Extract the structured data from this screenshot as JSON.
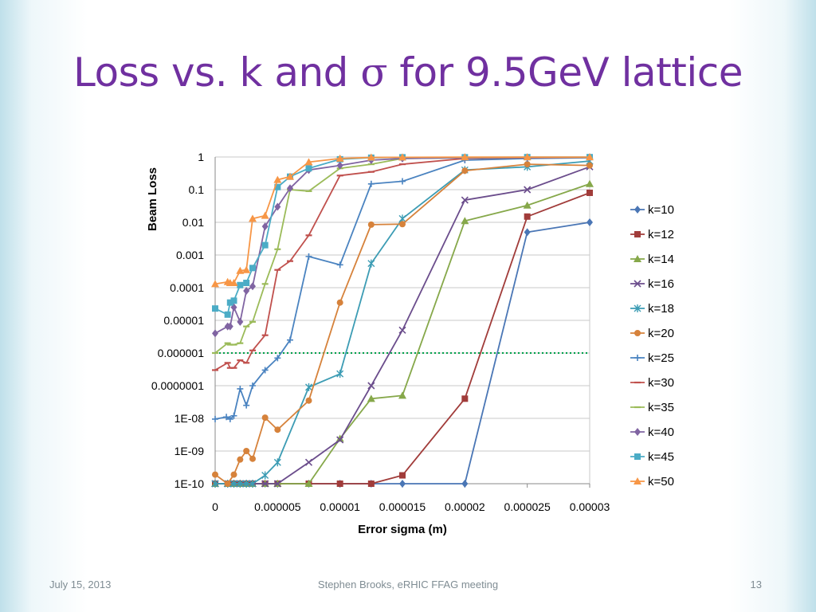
{
  "title": {
    "prefix": "Loss vs. k and ",
    "symbol": "σ",
    "suffix": " for 9.5GeV lattice"
  },
  "footer": {
    "date": "July 15, 2013",
    "center": "Stephen Brooks, eRHIC FFAG meeting",
    "page": "13"
  },
  "chart_data": {
    "type": "line",
    "title": "",
    "xlabel": "Error sigma (m)",
    "ylabel": "Beam Loss",
    "xlim": [
      0,
      3e-05
    ],
    "ylim": [
      1e-10,
      1
    ],
    "yscale": "log",
    "grid": "horizontal",
    "legend_position": "right",
    "x_tick_labels": [
      "0",
      "0.000005",
      "0.00001",
      "0.000015",
      "0.00002",
      "0.000025",
      "0.00003"
    ],
    "x_tick_values": [
      0,
      5e-06,
      1e-05,
      1.5e-05,
      2e-05,
      2.5e-05,
      3e-05
    ],
    "y_tick_labels": [
      "1",
      "0.1",
      "0.01",
      "0.001",
      "0.0001",
      "0.00001",
      "0.000001",
      "0.0000001",
      "1E-08",
      "1E-09",
      "1E-10"
    ],
    "y_tick_values": [
      1,
      0.1,
      0.01,
      0.001,
      0.0001,
      1e-05,
      1e-06,
      1e-07,
      1e-08,
      1e-09,
      1e-10
    ],
    "reference_line": {
      "y": 1e-06,
      "color": "#00a04a",
      "style": "dotted"
    },
    "series": [
      {
        "name": "k=10",
        "color": "#4a76b5",
        "marker": "diamond",
        "x": [
          0,
          1e-06,
          1.5e-06,
          2e-06,
          2.5e-06,
          3e-06,
          4e-06,
          5e-06,
          7.5e-06,
          1e-05,
          1.25e-05,
          1.5e-05,
          2e-05,
          2.5e-05,
          3e-05
        ],
        "y": [
          1e-10,
          1e-10,
          1e-10,
          1e-10,
          1e-10,
          1e-10,
          1e-10,
          1e-10,
          1e-10,
          1e-10,
          1e-10,
          1e-10,
          1e-10,
          0.005,
          0.01
        ]
      },
      {
        "name": "k=12",
        "color": "#a13c3a",
        "marker": "square",
        "x": [
          0,
          1e-06,
          1.5e-06,
          2e-06,
          2.5e-06,
          3e-06,
          4e-06,
          5e-06,
          7.5e-06,
          1e-05,
          1.25e-05,
          1.5e-05,
          2e-05,
          2.5e-05,
          3e-05
        ],
        "y": [
          1e-10,
          1e-10,
          1e-10,
          1e-10,
          1e-10,
          1e-10,
          1e-10,
          1e-10,
          1e-10,
          1e-10,
          1e-10,
          1.8e-10,
          4e-08,
          0.015,
          0.08
        ]
      },
      {
        "name": "k=14",
        "color": "#86a84a",
        "marker": "triangle",
        "x": [
          0,
          1e-06,
          1.5e-06,
          2e-06,
          2.5e-06,
          3e-06,
          4e-06,
          5e-06,
          7.5e-06,
          1e-05,
          1.25e-05,
          1.5e-05,
          2e-05,
          2.5e-05,
          3e-05
        ],
        "y": [
          1e-10,
          1e-10,
          1e-10,
          1e-10,
          1e-10,
          1e-10,
          1e-10,
          1e-10,
          1e-10,
          2.4e-09,
          4e-08,
          5e-08,
          0.011,
          0.033,
          0.15
        ]
      },
      {
        "name": "k=16",
        "color": "#6b4d8c",
        "marker": "x",
        "x": [
          0,
          1e-06,
          1.5e-06,
          2e-06,
          2.5e-06,
          3e-06,
          4e-06,
          5e-06,
          7.5e-06,
          1e-05,
          1.25e-05,
          1.5e-05,
          2e-05,
          2.5e-05,
          3e-05
        ],
        "y": [
          1e-10,
          1e-10,
          1e-10,
          1e-10,
          1e-10,
          1e-10,
          1e-10,
          1e-10,
          4.5e-10,
          2.2e-09,
          1e-07,
          5e-06,
          0.048,
          0.1,
          0.5
        ]
      },
      {
        "name": "k=18",
        "color": "#3c9cb4",
        "marker": "star",
        "x": [
          0,
          1e-06,
          1.5e-06,
          2e-06,
          2.5e-06,
          3e-06,
          4e-06,
          5e-06,
          7.5e-06,
          1e-05,
          1.25e-05,
          1.5e-05,
          2e-05,
          2.5e-05,
          3e-05
        ],
        "y": [
          1e-10,
          1e-10,
          1e-10,
          1e-10,
          1e-10,
          1e-10,
          1.8e-10,
          4.5e-10,
          9e-08,
          2.3e-07,
          0.00055,
          0.013,
          0.4,
          0.5,
          0.75
        ]
      },
      {
        "name": "k=20",
        "color": "#d6823b",
        "marker": "circle",
        "x": [
          0,
          1e-06,
          1.5e-06,
          2e-06,
          2.5e-06,
          3e-06,
          4e-06,
          5e-06,
          7.5e-06,
          1e-05,
          1.25e-05,
          1.5e-05,
          2e-05,
          2.5e-05,
          3e-05
        ],
        "y": [
          1.9e-10,
          1e-10,
          1.9e-10,
          5.5e-10,
          1e-09,
          5.8e-10,
          1.05e-08,
          4.5e-09,
          3.5e-08,
          3.5e-05,
          0.0085,
          0.0088,
          0.38,
          0.6,
          0.55
        ]
      },
      {
        "name": "k=25",
        "color": "#4a83c0",
        "marker": "plus",
        "x": [
          0,
          9e-07,
          1.2e-06,
          1.5e-06,
          2e-06,
          2.5e-06,
          3e-06,
          4e-06,
          5e-06,
          6e-06,
          7.5e-06,
          1e-05,
          1.25e-05,
          1.5e-05,
          2e-05,
          2.5e-05,
          3e-05
        ],
        "y": [
          9.5e-09,
          1.1e-08,
          9.5e-09,
          1.2e-08,
          8e-08,
          2.5e-08,
          1e-07,
          3e-07,
          7e-07,
          2.5e-06,
          0.0009,
          0.0005,
          0.15,
          0.18,
          0.8,
          0.9,
          0.95
        ]
      },
      {
        "name": "k=30",
        "color": "#c0504d",
        "marker": "dash",
        "x": [
          0,
          1e-06,
          1.2e-06,
          1.5e-06,
          2e-06,
          2.5e-06,
          3e-06,
          4e-06,
          5e-06,
          6e-06,
          7.5e-06,
          1e-05,
          1.25e-05,
          1.5e-05,
          2e-05,
          2.5e-05,
          3e-05
        ],
        "y": [
          3e-07,
          5e-07,
          3.5e-07,
          3.5e-07,
          6e-07,
          5e-07,
          1.2e-06,
          3.5e-06,
          0.00035,
          0.00065,
          0.004,
          0.27,
          0.35,
          0.6,
          0.9,
          0.95,
          0.97
        ]
      },
      {
        "name": "k=35",
        "color": "#9bbb59",
        "marker": "dash",
        "x": [
          0,
          1e-06,
          1.2e-06,
          1.5e-06,
          2e-06,
          2.5e-06,
          3e-06,
          4e-06,
          5e-06,
          6e-06,
          7.5e-06,
          1e-05,
          1.25e-05,
          1.5e-05,
          2e-05,
          2.5e-05,
          3e-05
        ],
        "y": [
          1e-06,
          2e-06,
          1.8e-06,
          1.8e-06,
          2e-06,
          6.5e-06,
          9e-06,
          0.00013,
          0.0015,
          0.1,
          0.09,
          0.45,
          0.6,
          0.9,
          0.95,
          0.97,
          0.98
        ]
      },
      {
        "name": "k=40",
        "color": "#8064a2",
        "marker": "diamond",
        "x": [
          0,
          1e-06,
          1.2e-06,
          1.5e-06,
          2e-06,
          2.5e-06,
          3e-06,
          4e-06,
          5e-06,
          6e-06,
          7.5e-06,
          1e-05,
          1.25e-05,
          1.5e-05,
          2e-05,
          2.5e-05,
          3e-05
        ],
        "y": [
          4e-06,
          6.5e-06,
          6.5e-06,
          2.5e-05,
          9e-06,
          8e-05,
          0.00011,
          0.0075,
          0.03,
          0.11,
          0.4,
          0.55,
          0.8,
          0.9,
          0.95,
          0.97,
          0.98
        ]
      },
      {
        "name": "k=45",
        "color": "#4bacc6",
        "marker": "square",
        "x": [
          0,
          1e-06,
          1.2e-06,
          1.5e-06,
          2e-06,
          2.5e-06,
          3e-06,
          4e-06,
          5e-06,
          6e-06,
          7.5e-06,
          1e-05,
          1.25e-05,
          1.5e-05,
          2e-05,
          2.5e-05,
          3e-05
        ],
        "y": [
          2.3e-05,
          1.5e-05,
          3.5e-05,
          4e-05,
          0.00012,
          0.00014,
          0.0004,
          0.002,
          0.12,
          0.25,
          0.45,
          0.85,
          0.95,
          0.98,
          0.98,
          0.99,
          0.99
        ]
      },
      {
        "name": "k=50",
        "color": "#f79646",
        "marker": "triangle",
        "x": [
          0,
          1e-06,
          1.2e-06,
          1.5e-06,
          2e-06,
          2.5e-06,
          3e-06,
          4e-06,
          5e-06,
          6e-06,
          7.5e-06,
          1e-05,
          1.25e-05,
          1.5e-05,
          2e-05,
          2.5e-05,
          3e-05
        ],
        "y": [
          0.00013,
          0.00015,
          0.00014,
          0.00014,
          0.00033,
          0.00035,
          0.013,
          0.016,
          0.2,
          0.25,
          0.7,
          0.9,
          0.97,
          0.98,
          0.99,
          0.99,
          0.99
        ]
      }
    ]
  }
}
